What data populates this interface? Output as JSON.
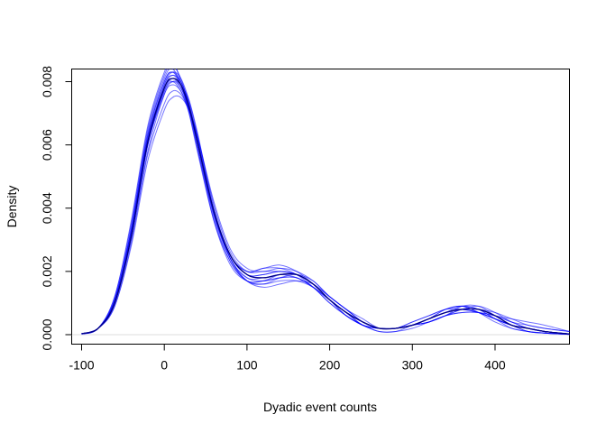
{
  "chart_data": {
    "type": "line",
    "title": "",
    "xlabel": "Dyadic event counts",
    "ylabel": "Density",
    "xlim": [
      -112,
      490
    ],
    "ylim": [
      -0.0003,
      0.0084
    ],
    "x_ticks": [
      -100,
      0,
      100,
      200,
      300,
      400
    ],
    "x_tick_labels": [
      "-100",
      "0",
      "100",
      "200",
      "300",
      "400"
    ],
    "y_ticks": [
      0,
      0.002,
      0.004,
      0.006,
      0.008
    ],
    "y_tick_labels": [
      "0.000",
      "0.002",
      "0.004",
      "0.006",
      "0.008"
    ],
    "grid": false,
    "legend": "none",
    "line_color": "#0000ff",
    "highlight_color": "#000080",
    "x": [
      -100,
      -80,
      -60,
      -40,
      -20,
      0,
      10,
      20,
      30,
      40,
      60,
      80,
      100,
      120,
      140,
      160,
      180,
      200,
      220,
      240,
      260,
      280,
      300,
      320,
      340,
      360,
      380,
      400,
      420,
      440,
      460,
      490
    ],
    "series": [
      {
        "values": [
          3e-05,
          0.0002,
          0.0011,
          0.0033,
          0.0063,
          0.008,
          0.0083,
          0.0079,
          0.0072,
          0.0061,
          0.0038,
          0.0024,
          0.0018,
          0.0017,
          0.0018,
          0.0018,
          0.0015,
          0.0011,
          0.0007,
          0.0004,
          0.0002,
          0.0002,
          0.0003,
          0.0005,
          0.0007,
          0.0008,
          0.0007,
          0.0005,
          0.0003,
          0.0002,
          0.0001,
          2e-05
        ]
      },
      {
        "values": [
          3e-05,
          0.0002,
          0.001,
          0.003,
          0.0058,
          0.0076,
          0.008,
          0.0079,
          0.0074,
          0.0064,
          0.004,
          0.0025,
          0.0019,
          0.0019,
          0.002,
          0.0019,
          0.0016,
          0.0011,
          0.0007,
          0.0004,
          0.0002,
          0.0002,
          0.0003,
          0.0005,
          0.0007,
          0.0009,
          0.0008,
          0.0005,
          0.0003,
          0.0002,
          0.0001,
          2e-05
        ]
      },
      {
        "values": [
          2e-05,
          0.0002,
          0.0012,
          0.0036,
          0.0066,
          0.0083,
          0.0086,
          0.008,
          0.007,
          0.0058,
          0.0036,
          0.0023,
          0.0017,
          0.0016,
          0.0017,
          0.0017,
          0.0015,
          0.0011,
          0.0007,
          0.0004,
          0.0002,
          0.0002,
          0.0003,
          0.0005,
          0.0007,
          0.0008,
          0.0008,
          0.0006,
          0.0003,
          0.0002,
          0.0001,
          2e-05
        ]
      },
      {
        "values": [
          3e-05,
          0.0002,
          0.0009,
          0.0028,
          0.0055,
          0.0071,
          0.0075,
          0.0075,
          0.0071,
          0.0063,
          0.0042,
          0.0027,
          0.0021,
          0.002,
          0.0021,
          0.002,
          0.0017,
          0.0012,
          0.0008,
          0.0004,
          0.0002,
          0.0002,
          0.0003,
          0.0004,
          0.0006,
          0.0008,
          0.0008,
          0.0007,
          0.0005,
          0.0003,
          0.0002,
          0.0001
        ]
      },
      {
        "values": [
          2e-05,
          0.0002,
          0.0011,
          0.0034,
          0.0064,
          0.0081,
          0.0084,
          0.0079,
          0.0071,
          0.006,
          0.0037,
          0.0023,
          0.0017,
          0.0017,
          0.0019,
          0.0019,
          0.0016,
          0.0011,
          0.0006,
          0.0003,
          0.0001,
          0.0001,
          0.0003,
          0.0005,
          0.0008,
          0.0009,
          0.0008,
          0.0005,
          0.0002,
          0.0001,
          5e-05,
          1e-05
        ]
      },
      {
        "values": [
          3e-05,
          0.0002,
          0.001,
          0.0031,
          0.006,
          0.0077,
          0.0081,
          0.0078,
          0.0072,
          0.0062,
          0.0039,
          0.0025,
          0.002,
          0.0021,
          0.0021,
          0.0019,
          0.0015,
          0.001,
          0.0006,
          0.0003,
          0.0002,
          0.0002,
          0.0004,
          0.0006,
          0.0008,
          0.0008,
          0.0007,
          0.0005,
          0.0003,
          0.0002,
          0.0001,
          2e-05
        ]
      },
      {
        "values": [
          2e-05,
          0.0002,
          0.001,
          0.0032,
          0.0062,
          0.0079,
          0.0082,
          0.008,
          0.0073,
          0.0062,
          0.0039,
          0.0024,
          0.0017,
          0.0016,
          0.0018,
          0.0019,
          0.0017,
          0.0012,
          0.0008,
          0.0004,
          0.0002,
          0.0002,
          0.0003,
          0.0004,
          0.0006,
          0.0009,
          0.0009,
          0.0006,
          0.0003,
          0.0001,
          5e-05,
          1e-05
        ]
      },
      {
        "values": [
          3e-05,
          0.0002,
          0.001,
          0.0031,
          0.006,
          0.0076,
          0.0079,
          0.0077,
          0.0071,
          0.0061,
          0.0039,
          0.0025,
          0.0019,
          0.0018,
          0.0019,
          0.0019,
          0.0016,
          0.0011,
          0.0007,
          0.0003,
          0.0002,
          0.0002,
          0.0003,
          0.0004,
          0.0006,
          0.0007,
          0.0007,
          0.0006,
          0.0005,
          0.0004,
          0.0003,
          0.0001
        ]
      },
      {
        "values": [
          2e-05,
          0.0002,
          0.0012,
          0.0035,
          0.0065,
          0.0082,
          0.0085,
          0.0081,
          0.0072,
          0.0059,
          0.0036,
          0.0022,
          0.0017,
          0.0017,
          0.0018,
          0.0018,
          0.0015,
          0.0011,
          0.0007,
          0.0004,
          0.0002,
          0.0002,
          0.0003,
          0.0005,
          0.0008,
          0.0009,
          0.0007,
          0.0004,
          0.0002,
          0.0001,
          5e-05,
          1e-05
        ]
      },
      {
        "values": [
          3e-05,
          0.0002,
          0.0009,
          0.0029,
          0.0057,
          0.0073,
          0.0077,
          0.0076,
          0.0071,
          0.0063,
          0.0041,
          0.0026,
          0.002,
          0.002,
          0.002,
          0.0019,
          0.0016,
          0.0012,
          0.0008,
          0.0004,
          0.0002,
          0.0002,
          0.0003,
          0.0005,
          0.0007,
          0.0008,
          0.0008,
          0.0006,
          0.0004,
          0.0002,
          0.0001,
          3e-05
        ]
      },
      {
        "values": [
          2e-05,
          0.0002,
          0.0011,
          0.0033,
          0.0063,
          0.008,
          0.0083,
          0.008,
          0.0073,
          0.0061,
          0.0038,
          0.0024,
          0.0018,
          0.0018,
          0.0019,
          0.0018,
          0.0015,
          0.001,
          0.0006,
          0.0003,
          0.0002,
          0.0002,
          0.0004,
          0.0006,
          0.0008,
          0.0009,
          0.0007,
          0.0005,
          0.0003,
          0.0001,
          5e-05,
          1e-05
        ]
      },
      {
        "values": [
          3e-05,
          0.0002,
          0.001,
          0.0031,
          0.006,
          0.0078,
          0.0082,
          0.0079,
          0.0072,
          0.0061,
          0.0039,
          0.0025,
          0.0019,
          0.0019,
          0.002,
          0.0019,
          0.0016,
          0.0011,
          0.0007,
          0.0003,
          0.0002,
          0.0002,
          0.0003,
          0.0005,
          0.0007,
          0.0008,
          0.0008,
          0.0006,
          0.0003,
          0.0002,
          0.0001,
          2e-05
        ]
      },
      {
        "values": [
          3e-05,
          0.0002,
          0.0011,
          0.0033,
          0.0062,
          0.0078,
          0.008,
          0.0077,
          0.007,
          0.0059,
          0.0038,
          0.0025,
          0.002,
          0.0021,
          0.0022,
          0.002,
          0.0016,
          0.0011,
          0.0006,
          0.0003,
          0.0001,
          0.0001,
          0.0002,
          0.0004,
          0.0006,
          0.0007,
          0.0007,
          0.0006,
          0.0004,
          0.0003,
          0.0002,
          0.0001
        ]
      },
      {
        "values": [
          2e-05,
          0.0002,
          0.001,
          0.0031,
          0.0061,
          0.0079,
          0.0083,
          0.0081,
          0.0074,
          0.0063,
          0.0039,
          0.0024,
          0.0017,
          0.0015,
          0.0016,
          0.0017,
          0.0016,
          0.0012,
          0.0008,
          0.0005,
          0.0002,
          0.0002,
          0.0003,
          0.0005,
          0.0007,
          0.0008,
          0.0007,
          0.0005,
          0.0003,
          0.0002,
          0.0001,
          2e-05
        ]
      },
      {
        "values": [
          3e-05,
          0.0002,
          0.001,
          0.0032,
          0.0061,
          0.0077,
          0.008,
          0.0078,
          0.0071,
          0.0061,
          0.0039,
          0.0025,
          0.0019,
          0.0018,
          0.0019,
          0.0019,
          0.0016,
          0.0011,
          0.0007,
          0.0003,
          0.0002,
          0.0002,
          0.0003,
          0.0004,
          0.0006,
          0.0008,
          0.0009,
          0.0007,
          0.0004,
          0.0002,
          0.0001,
          2e-05
        ]
      },
      {
        "highlight": true,
        "values": [
          3e-05,
          0.0002,
          0.001,
          0.0031,
          0.0061,
          0.0078,
          0.0081,
          0.0079,
          0.0072,
          0.0061,
          0.0039,
          0.0025,
          0.0019,
          0.0018,
          0.0019,
          0.0019,
          0.0016,
          0.0011,
          0.0007,
          0.0004,
          0.0002,
          0.0002,
          0.0003,
          0.0005,
          0.0007,
          0.0008,
          0.0008,
          0.0006,
          0.0003,
          0.0002,
          0.0001,
          2e-05
        ]
      }
    ]
  }
}
